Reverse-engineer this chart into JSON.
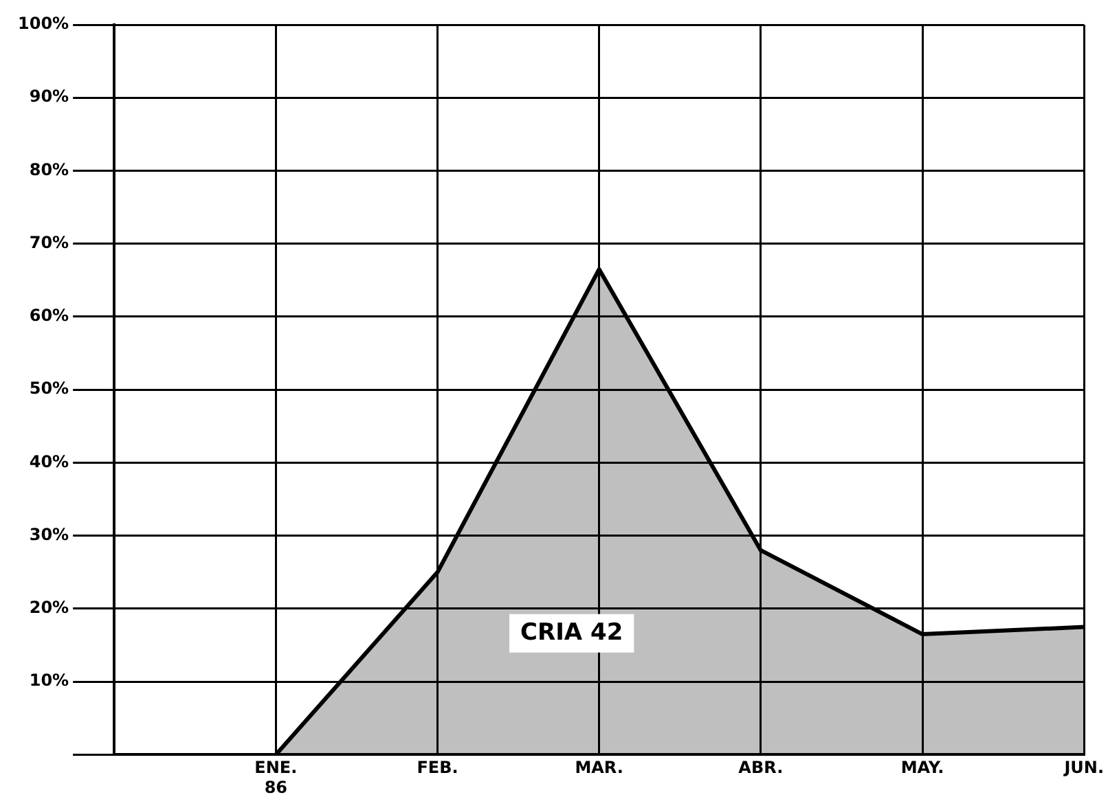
{
  "chart_data": {
    "type": "area",
    "grid": true,
    "categories": [
      null,
      "ENE.\n86",
      "FEB.",
      "MAR.",
      "ABR.",
      "MAY.",
      "JUN."
    ],
    "ylim": [
      0,
      100
    ],
    "yticks": [
      {
        "value": 0,
        "label": null
      },
      {
        "value": 10,
        "label": "10%"
      },
      {
        "value": 20,
        "label": "20%"
      },
      {
        "value": 30,
        "label": "30%"
      },
      {
        "value": 40,
        "label": "40%"
      },
      {
        "value": 50,
        "label": "50%"
      },
      {
        "value": 60,
        "label": "60%"
      },
      {
        "value": 70,
        "label": "70%"
      },
      {
        "value": 80,
        "label": "80%"
      },
      {
        "value": 90,
        "label": "90%"
      },
      {
        "value": 100,
        "label": "100%"
      }
    ],
    "series": [
      {
        "name": "CRIA 42",
        "color": "#000000",
        "values": [
          null,
          0,
          25,
          66.5,
          28,
          16.5,
          17.5
        ]
      }
    ]
  }
}
